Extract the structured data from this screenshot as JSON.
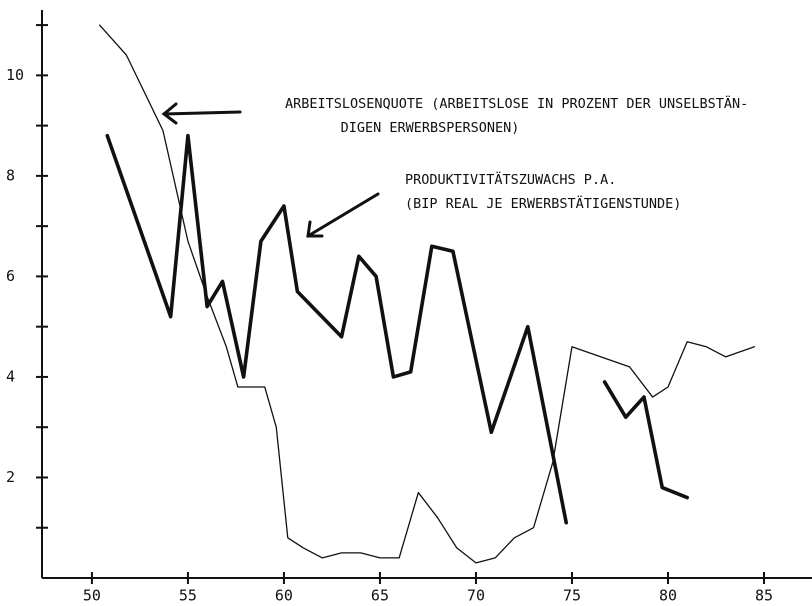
{
  "chart_data": {
    "type": "line",
    "xlim": [
      47.4,
      87.5
    ],
    "ylim": [
      0,
      11.3
    ],
    "xticks": [
      50,
      55,
      60,
      65,
      70,
      75,
      80,
      85
    ],
    "yticks": [
      2,
      4,
      6,
      8,
      10
    ],
    "yminor_ticks": [
      1,
      3,
      5,
      7,
      9,
      11
    ],
    "grid": false,
    "color": "#111111",
    "series": [
      {
        "color": "#111111",
        "line_width": 1.3,
        "x": [
          50.4,
          51.8,
          53.7,
          55,
          56,
          57,
          57.6,
          59,
          59.6,
          60.2,
          61,
          62,
          63,
          64,
          65,
          66,
          67,
          68,
          69,
          70,
          71,
          72,
          73,
          74,
          75,
          78,
          79.2,
          80,
          81,
          82,
          83,
          84.5
        ],
        "values": [
          11.0,
          10.4,
          8.9,
          6.7,
          5.6,
          4.6,
          3.8,
          3.8,
          3.0,
          0.8,
          0.6,
          0.4,
          0.5,
          0.5,
          0.4,
          0.4,
          1.7,
          1.2,
          0.6,
          0.3,
          0.4,
          0.8,
          1.0,
          2.3,
          4.6,
          4.2,
          3.6,
          3.8,
          4.7,
          4.6,
          4.4,
          4.6
        ]
      },
      {
        "color": "#111111",
        "line_width": 3.6,
        "x": [
          50.8,
          54.1,
          55,
          56,
          56.8,
          57.9,
          58.8,
          60,
          60.7,
          63,
          63.9,
          64.8,
          65.7,
          66.6,
          67.7,
          68.8,
          70.8,
          72.7,
          74.7,
          75.7,
          76.7,
          77.8,
          78.75,
          79.7,
          81
        ],
        "values": [
          8.8,
          5.2,
          8.8,
          5.4,
          5.9,
          4.0,
          6.7,
          7.4,
          5.7,
          4.8,
          6.4,
          6.0,
          4.0,
          4.1,
          6.6,
          6.5,
          2.9,
          5.0,
          1.1,
          null,
          3.9,
          3.2,
          3.6,
          1.8,
          1.6
        ]
      }
    ],
    "annotations": [
      {
        "lines": [
          "ARBEITSLOSENQUOTE (ARBEITSLOSE IN PROZENT DER UNSELBSTÄN-",
          "DIGEN ERWERBSPERSONEN)"
        ]
      },
      {
        "lines": [
          "PRODUKTIVITÄTSZUWACHS P.A.",
          "(BIP REAL JE ERWERBSTÄTIGENSTUNDE)"
        ]
      }
    ]
  }
}
